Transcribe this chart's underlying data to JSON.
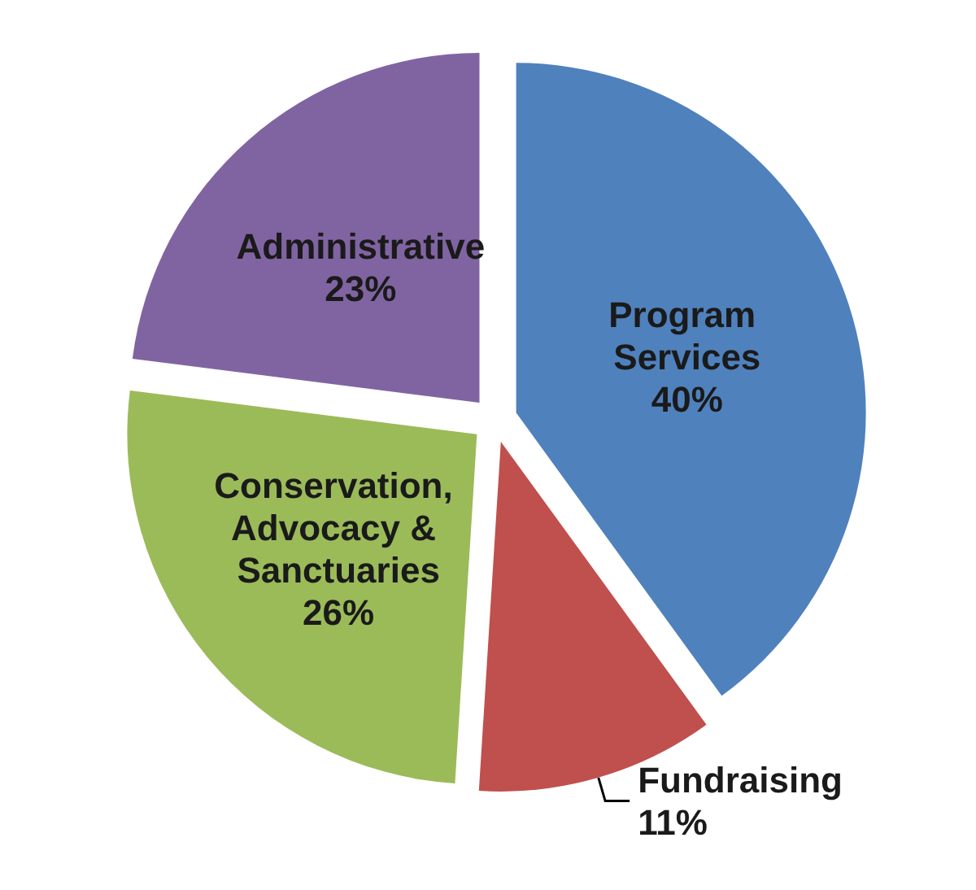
{
  "chart_data": {
    "type": "pie",
    "categories": [
      "Program Services",
      "Fundraising",
      "Conservation, Advocacy & Sanctuaries",
      "Administrative"
    ],
    "values": [
      40,
      11,
      26,
      23
    ],
    "colors": [
      "#4f81bd",
      "#c0504d",
      "#9bbb59",
      "#8064a2"
    ],
    "value_labels": [
      "40%",
      "11%",
      "26%",
      "23%"
    ]
  }
}
